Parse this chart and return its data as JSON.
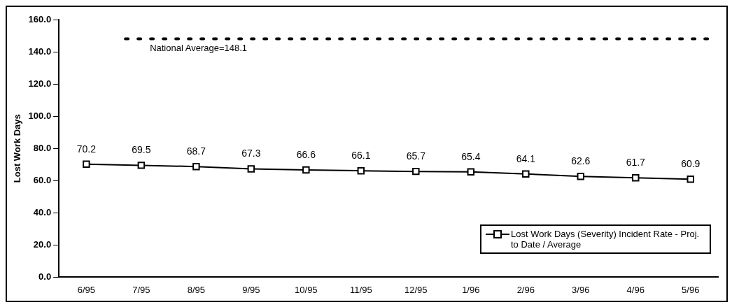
{
  "chart_data": {
    "type": "line",
    "ylabel": "Lost Work Days",
    "categories": [
      "6/95",
      "7/95",
      "8/95",
      "9/95",
      "10/95",
      "11/95",
      "12/95",
      "1/96",
      "2/96",
      "3/96",
      "4/96",
      "5/96"
    ],
    "series": [
      {
        "name": "Lost Work Days (Severity) Incident Rate - Proj. to Date / Average",
        "color": "#000000",
        "values": [
          70.2,
          69.5,
          68.7,
          67.3,
          66.6,
          66.1,
          65.7,
          65.4,
          64.1,
          62.6,
          61.7,
          60.9
        ]
      }
    ],
    "ylim": [
      0,
      160
    ],
    "yticks": [
      {
        "value": 0,
        "label": "0.0"
      },
      {
        "value": 20,
        "label": "20.0"
      },
      {
        "value": 40,
        "label": "40.0"
      },
      {
        "value": 60,
        "label": "60.0"
      },
      {
        "value": 80,
        "label": "80.0"
      },
      {
        "value": 100,
        "label": "100.0"
      },
      {
        "value": 120,
        "label": "120.0"
      },
      {
        "value": 140,
        "label": "140.0"
      },
      {
        "value": 160,
        "label": "160.0"
      }
    ],
    "ref_lines": [
      {
        "axis": "y",
        "value": 148.1,
        "label": "National Average=148.1",
        "color": "#000000",
        "line_style": "dotted"
      }
    ],
    "data_labels": true,
    "grid": false,
    "legend": "bottom right",
    "marker": "square",
    "line_style": "solid"
  }
}
